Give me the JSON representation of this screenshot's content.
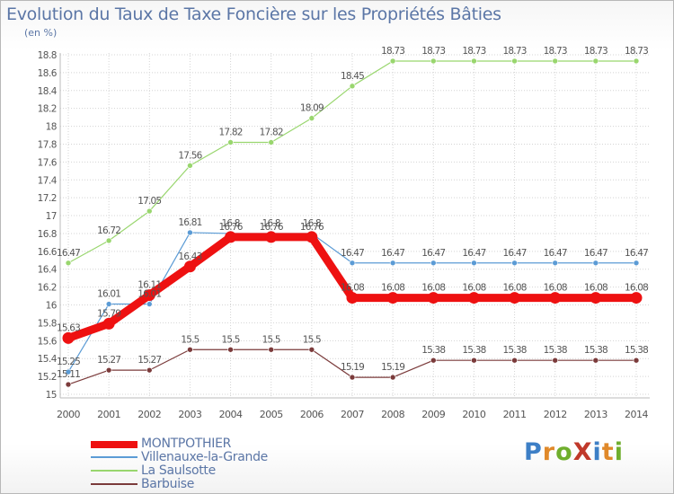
{
  "title": "Evolution du Taux de Taxe Foncière sur les Propriétés Bâties",
  "unit_label": "(en %)",
  "logo": {
    "text": "ProXiti"
  },
  "colors": {
    "grid": "#d4d4d4",
    "axis_text": "#555555",
    "label_text": "#555555",
    "logo_letters": [
      "#3d7fc6",
      "#e0892a",
      "#6fae2d",
      "#c0392b",
      "#3d7fc6",
      "#e0892a",
      "#6fae2d"
    ]
  },
  "chart_data": {
    "type": "line",
    "title": "Evolution du Taux de Taxe Foncière sur les Propriétés Bâties",
    "ylabel": "(en %)",
    "xlabel": "",
    "ylim": [
      15,
      18.8
    ],
    "y_ticks": [
      "15",
      "15.2",
      "15.4",
      "15.6",
      "15.8",
      "16",
      "16.2",
      "16.4",
      "16.6",
      "16.8",
      "17",
      "17.2",
      "17.4",
      "17.6",
      "17.8",
      "18",
      "18.2",
      "18.4",
      "18.6",
      "18.8"
    ],
    "x": [
      "2000",
      "2001",
      "2002",
      "2003",
      "2004",
      "2005",
      "2006",
      "2007",
      "2008",
      "2009",
      "2010",
      "2011",
      "2012",
      "2013",
      "2014"
    ],
    "grid": true,
    "legend_position": "bottom-left",
    "series": [
      {
        "name": "MONTPOTHIER",
        "color": "#ee1111",
        "values": [
          15.63,
          15.79,
          16.11,
          16.43,
          16.76,
          16.76,
          16.76,
          16.08,
          16.08,
          16.08,
          16.08,
          16.08,
          16.08,
          16.08,
          16.08
        ],
        "labels": [
          "15.63",
          "15.79",
          "16.11",
          "16.43",
          "16.76",
          "16.76",
          "16.76",
          "16.08",
          "16.08",
          "16.08",
          "16.08",
          "16.08",
          "16.08",
          "16.08",
          "16.08"
        ]
      },
      {
        "name": "Villenauxe-la-Grande",
        "color": "#5b9bd5",
        "values": [
          15.25,
          16.01,
          16.01,
          16.81,
          16.8,
          16.8,
          16.8,
          16.47,
          16.47,
          16.47,
          16.47,
          16.47,
          16.47,
          16.47,
          16.47
        ],
        "labels": [
          "15.25",
          "16.01",
          "16.01",
          "16.81",
          "16.8",
          "16.8",
          "16.8",
          "16.47",
          "16.47",
          "16.47",
          "16.47",
          "16.47",
          "16.47",
          "16.47",
          "16.47"
        ]
      },
      {
        "name": "La Saulsotte",
        "color": "#99d66e",
        "values": [
          16.47,
          16.72,
          17.05,
          17.56,
          17.82,
          17.82,
          18.09,
          18.45,
          18.73,
          18.73,
          18.73,
          18.73,
          18.73,
          18.73,
          18.73
        ],
        "labels": [
          "16.47",
          "16.72",
          "17.05",
          "17.56",
          "17.82",
          "17.82",
          "18.09",
          "18.45",
          "18.73",
          "18.73",
          "18.73",
          "18.73",
          "18.73",
          "18.73",
          "18.73"
        ]
      },
      {
        "name": "Barbuise",
        "color": "#7b3b3b",
        "values": [
          15.11,
          15.27,
          15.27,
          15.5,
          15.5,
          15.5,
          15.5,
          15.19,
          15.19,
          15.38,
          15.38,
          15.38,
          15.38,
          15.38,
          15.38
        ],
        "labels": [
          "15.11",
          "15.27",
          "15.27",
          "15.5",
          "15.5",
          "15.5",
          "15.5",
          "15.19",
          "15.19",
          "15.38",
          "15.38",
          "15.38",
          "15.38",
          "15.38",
          "15.38"
        ]
      }
    ]
  }
}
